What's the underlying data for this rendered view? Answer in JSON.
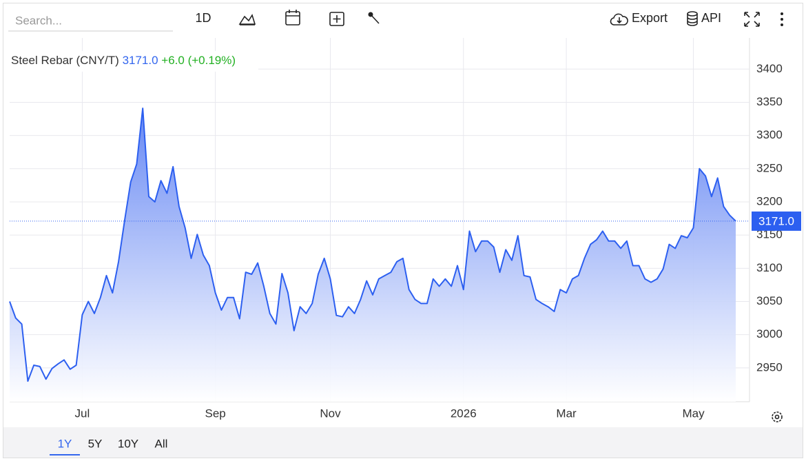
{
  "toolbar": {
    "search_placeholder": "Search...",
    "interval": "1D",
    "export": "Export",
    "api": "API"
  },
  "range_buttons": [
    "1Y",
    "5Y",
    "10Y",
    "All"
  ],
  "chart_data": {
    "type": "area",
    "title": "Steel Rebar (CNY/T)",
    "last_price_label": "3171.0",
    "change_label": "+6.0 (+0.19%)",
    "color": "#2c5ff0",
    "categories": [
      null,
      null,
      null,
      null,
      null,
      null,
      null,
      null,
      null,
      null,
      null,
      null,
      "Jul",
      null,
      null,
      null,
      null,
      null,
      null,
      null,
      null,
      null,
      null,
      null,
      null,
      null,
      null,
      null,
      null,
      null,
      null,
      null,
      null,
      null,
      "Sep",
      null,
      null,
      null,
      null,
      null,
      null,
      null,
      null,
      null,
      null,
      null,
      null,
      null,
      null,
      null,
      null,
      null,
      null,
      "Nov",
      null,
      null,
      null,
      null,
      null,
      null,
      null,
      null,
      null,
      null,
      null,
      null,
      null,
      null,
      null,
      null,
      null,
      null,
      null,
      null,
      null,
      "2026",
      null,
      null,
      null,
      null,
      null,
      null,
      null,
      null,
      null,
      null,
      null,
      null,
      null,
      null,
      null,
      null,
      "Mar",
      null,
      null,
      null,
      null,
      null,
      null,
      null,
      null,
      null,
      null,
      null,
      null,
      null,
      null,
      null,
      null,
      null,
      null,
      null,
      null,
      "May",
      null,
      null,
      null,
      null,
      null,
      null,
      null
    ],
    "values": [
      3050,
      3025,
      3016,
      2930,
      2954,
      2952,
      2933,
      2949,
      2956,
      2962,
      2948,
      2954,
      3030,
      3050,
      3032,
      3056,
      3089,
      3063,
      3110,
      3172,
      3230,
      3257,
      3341,
      3208,
      3200,
      3232,
      3213,
      3253,
      3193,
      3161,
      3115,
      3151,
      3120,
      3104,
      3063,
      3037,
      3056,
      3056,
      3024,
      3094,
      3091,
      3108,
      3073,
      3032,
      3016,
      3092,
      3063,
      3006,
      3042,
      3032,
      3047,
      3091,
      3115,
      3084,
      3029,
      3027,
      3042,
      3032,
      3053,
      3081,
      3060,
      3084,
      3089,
      3094,
      3110,
      3115,
      3068,
      3053,
      3047,
      3047,
      3084,
      3073,
      3084,
      3073,
      3104,
      3068,
      3156,
      3125,
      3141,
      3141,
      3132,
      3094,
      3128,
      3112,
      3149,
      3089,
      3087,
      3053,
      3047,
      3042,
      3035,
      3068,
      3063,
      3084,
      3089,
      3115,
      3136,
      3143,
      3156,
      3141,
      3141,
      3130,
      3141,
      3104,
      3104,
      3084,
      3079,
      3084,
      3099,
      3136,
      3130,
      3149,
      3146,
      3161,
      3250,
      3239,
      3208,
      3236,
      3193,
      3180,
      3171
    ],
    "ylim": [
      2899,
      3447
    ],
    "yticks": [
      2950,
      3000,
      3050,
      3100,
      3150,
      3200,
      3250,
      3300,
      3350,
      3400
    ],
    "grid": true
  }
}
